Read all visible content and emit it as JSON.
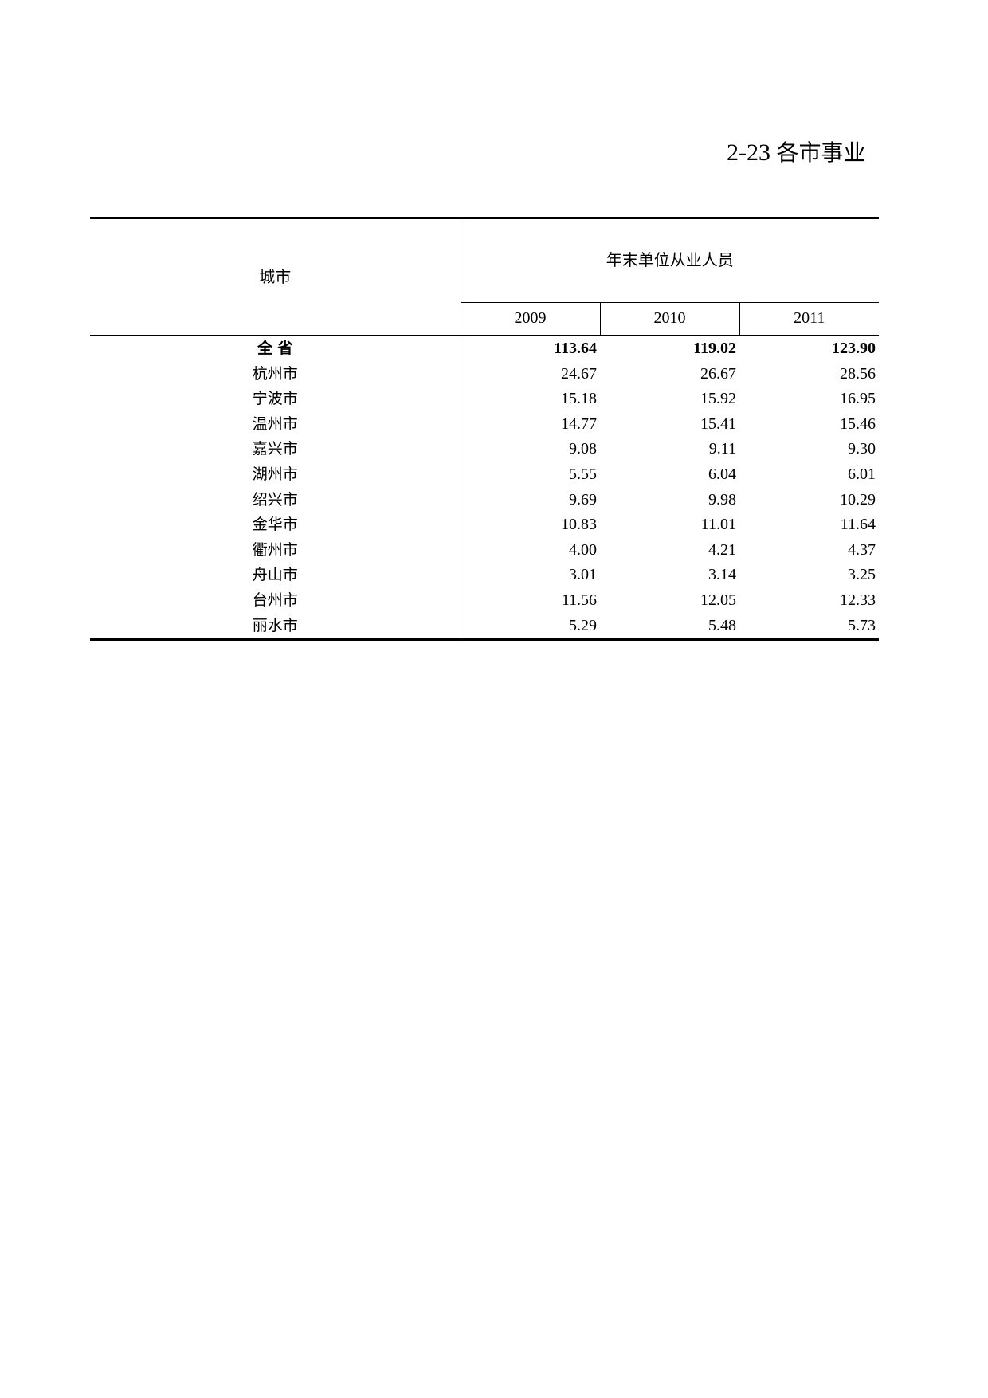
{
  "title": {
    "number": "2-23",
    "text": "各市事业"
  },
  "table": {
    "city_header": "城市",
    "group_header": "年末单位从业人员",
    "years": [
      "2009",
      "2010",
      "2011"
    ],
    "rows": [
      {
        "city": "全 省",
        "values": [
          "113.64",
          "119.02",
          "123.90"
        ]
      },
      {
        "city": "杭州市",
        "values": [
          "24.67",
          "26.67",
          "28.56"
        ]
      },
      {
        "city": "宁波市",
        "values": [
          "15.18",
          "15.92",
          "16.95"
        ]
      },
      {
        "city": "温州市",
        "values": [
          "14.77",
          "15.41",
          "15.46"
        ]
      },
      {
        "city": "嘉兴市",
        "values": [
          "9.08",
          "9.11",
          "9.30"
        ]
      },
      {
        "city": "湖州市",
        "values": [
          "5.55",
          "6.04",
          "6.01"
        ]
      },
      {
        "city": "绍兴市",
        "values": [
          "9.69",
          "9.98",
          "10.29"
        ]
      },
      {
        "city": "金华市",
        "values": [
          "10.83",
          "11.01",
          "11.64"
        ]
      },
      {
        "city": "衢州市",
        "values": [
          "4.00",
          "4.21",
          "4.37"
        ]
      },
      {
        "city": "舟山市",
        "values": [
          "3.01",
          "3.14",
          "3.25"
        ]
      },
      {
        "city": "台州市",
        "values": [
          "11.56",
          "12.05",
          "12.33"
        ]
      },
      {
        "city": "丽水市",
        "values": [
          "5.29",
          "5.48",
          "5.73"
        ]
      }
    ]
  }
}
